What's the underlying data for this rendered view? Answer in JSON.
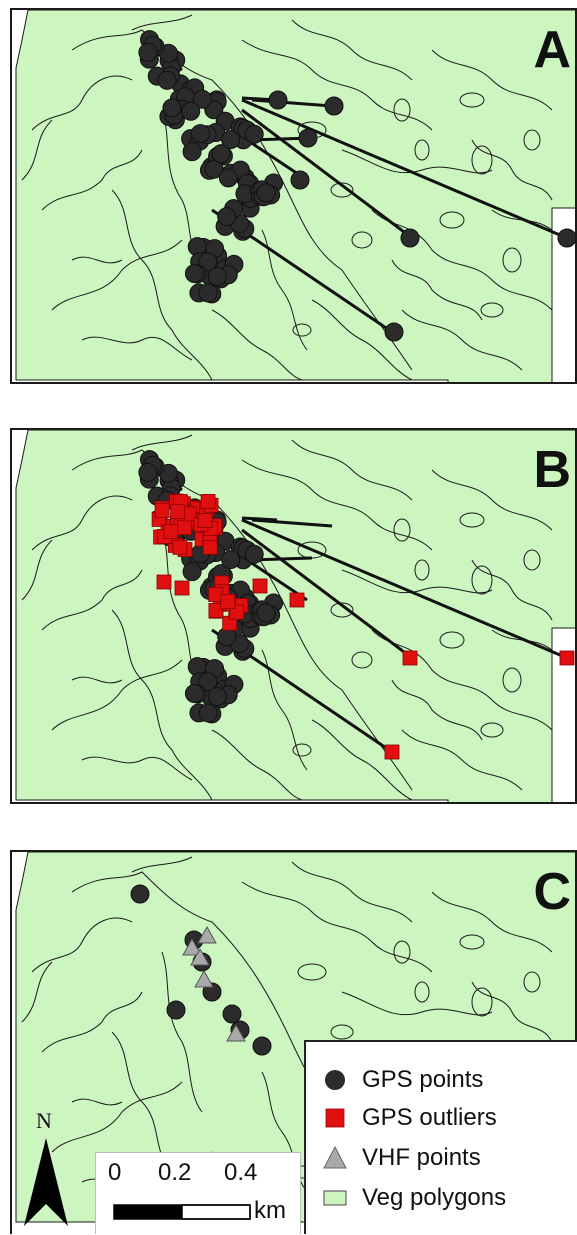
{
  "panels": [
    {
      "label": "A"
    },
    {
      "label": "B"
    },
    {
      "label": "C"
    }
  ],
  "legend": {
    "items": [
      {
        "label": "GPS points",
        "symbol": "circle",
        "color": "#2b2b2b"
      },
      {
        "label": "GPS outliers",
        "symbol": "square",
        "color": "#e01010"
      },
      {
        "label": "VHF points",
        "symbol": "triangle",
        "color": "#a9a9a9"
      },
      {
        "label": "Veg polygons",
        "symbol": "rect",
        "color": "#ccf5c0"
      }
    ]
  },
  "scalebar": {
    "ticks": [
      "0",
      "0.2",
      "0.4"
    ],
    "unit": "km"
  },
  "north_arrow": {
    "label": "N"
  },
  "colors": {
    "vegetation": "#ccf5c0",
    "polygon_line": "#1a1a1a",
    "gps_point": "#2b2b2b",
    "gps_outlier": "#e01010",
    "vhf_point": "#a9a9a9"
  }
}
